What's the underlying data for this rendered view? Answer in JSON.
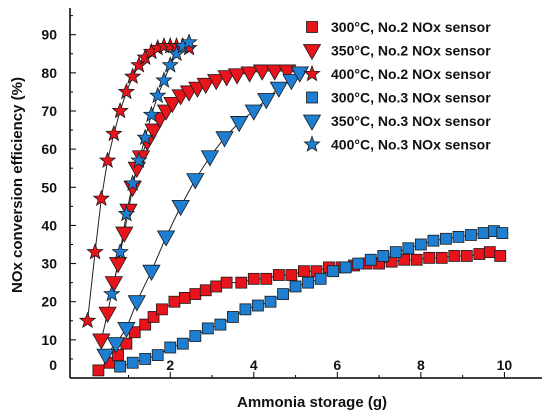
{
  "chart_data": {
    "type": "scatter",
    "xlabel": "Ammonia storage (g)",
    "ylabel": "NOx conversion efficiency (%)",
    "xlim": [
      -0.4,
      10.9
    ],
    "ylim": [
      0,
      97
    ],
    "xticks": [
      2,
      4,
      6,
      8,
      10
    ],
    "yticks": [
      10,
      20,
      30,
      40,
      50,
      60,
      70,
      80,
      90
    ],
    "y_zero_label": "0",
    "grid": false,
    "legend_position": "top-right",
    "colors": {
      "red": "#e8141c",
      "blue": "#1e7fd2",
      "edge": "#1a1a1a"
    },
    "series": [
      {
        "name": "300°C, No.2 NOx sensor",
        "marker": "square",
        "color": "#e8141c",
        "points": [
          [
            0.28,
            2
          ],
          [
            0.55,
            4
          ],
          [
            0.75,
            6
          ],
          [
            0.95,
            9
          ],
          [
            1.15,
            12
          ],
          [
            1.4,
            14
          ],
          [
            1.6,
            16
          ],
          [
            1.8,
            18
          ],
          [
            2.1,
            20
          ],
          [
            2.35,
            21
          ],
          [
            2.6,
            22
          ],
          [
            2.85,
            23
          ],
          [
            3.1,
            24
          ],
          [
            3.35,
            25
          ],
          [
            3.7,
            25
          ],
          [
            4.0,
            26
          ],
          [
            4.3,
            26
          ],
          [
            4.6,
            27
          ],
          [
            4.9,
            27
          ],
          [
            5.2,
            28
          ],
          [
            5.5,
            28
          ],
          [
            5.8,
            29
          ],
          [
            6.1,
            29
          ],
          [
            6.4,
            29.5
          ],
          [
            6.7,
            30
          ],
          [
            7.0,
            30
          ],
          [
            7.3,
            30.5
          ],
          [
            7.6,
            31
          ],
          [
            7.9,
            31
          ],
          [
            8.2,
            31.5
          ],
          [
            8.5,
            31.5
          ],
          [
            8.8,
            32
          ],
          [
            9.1,
            32
          ],
          [
            9.4,
            32.5
          ],
          [
            9.65,
            33
          ],
          [
            9.9,
            32
          ]
        ]
      },
      {
        "name": "350°C, No.2 NOx sensor",
        "marker": "triangle-down",
        "color": "#e8141c",
        "points": [
          [
            0.35,
            10
          ],
          [
            0.5,
            17
          ],
          [
            0.65,
            25
          ],
          [
            0.75,
            30
          ],
          [
            0.9,
            38
          ],
          [
            1.0,
            44
          ],
          [
            1.1,
            50
          ],
          [
            1.2,
            55
          ],
          [
            1.3,
            58
          ],
          [
            1.45,
            62
          ],
          [
            1.6,
            65
          ],
          [
            1.75,
            68
          ],
          [
            1.9,
            70
          ],
          [
            2.05,
            72
          ],
          [
            2.25,
            74
          ],
          [
            2.45,
            75
          ],
          [
            2.65,
            76
          ],
          [
            2.85,
            77
          ],
          [
            3.1,
            78
          ],
          [
            3.35,
            79
          ],
          [
            3.6,
            79.5
          ],
          [
            3.9,
            80
          ],
          [
            4.2,
            80.5
          ],
          [
            4.5,
            80.5
          ],
          [
            4.8,
            80.5
          ],
          [
            5.1,
            80
          ]
        ]
      },
      {
        "name": "400°C, No.2 NOx sensor",
        "marker": "star",
        "color": "#e8141c",
        "points": [
          [
            0.02,
            15
          ],
          [
            0.2,
            33
          ],
          [
            0.35,
            47
          ],
          [
            0.5,
            57
          ],
          [
            0.65,
            64
          ],
          [
            0.8,
            70
          ],
          [
            0.95,
            75
          ],
          [
            1.1,
            79
          ],
          [
            1.25,
            82
          ],
          [
            1.4,
            84
          ],
          [
            1.55,
            85.5
          ],
          [
            1.7,
            86.5
          ],
          [
            1.85,
            87
          ],
          [
            2.0,
            87
          ],
          [
            2.15,
            87
          ],
          [
            2.3,
            87
          ],
          [
            2.45,
            86.5
          ]
        ]
      },
      {
        "name": "300°C, No.3 NOx sensor",
        "marker": "square",
        "color": "#1e7fd2",
        "points": [
          [
            0.8,
            3
          ],
          [
            1.1,
            4
          ],
          [
            1.4,
            5
          ],
          [
            1.7,
            6
          ],
          [
            2.0,
            8
          ],
          [
            2.3,
            9
          ],
          [
            2.6,
            11
          ],
          [
            2.9,
            13
          ],
          [
            3.2,
            14
          ],
          [
            3.5,
            16
          ],
          [
            3.8,
            18
          ],
          [
            4.1,
            19
          ],
          [
            4.4,
            20
          ],
          [
            4.7,
            22
          ],
          [
            5.0,
            24
          ],
          [
            5.3,
            25
          ],
          [
            5.6,
            26
          ],
          [
            5.9,
            28
          ],
          [
            6.2,
            29
          ],
          [
            6.5,
            30
          ],
          [
            6.8,
            31
          ],
          [
            7.1,
            32
          ],
          [
            7.4,
            33
          ],
          [
            7.7,
            34
          ],
          [
            8.0,
            35
          ],
          [
            8.3,
            36
          ],
          [
            8.6,
            36.5
          ],
          [
            8.9,
            37
          ],
          [
            9.2,
            37.5
          ],
          [
            9.5,
            38
          ],
          [
            9.75,
            38.5
          ],
          [
            9.95,
            38
          ]
        ]
      },
      {
        "name": "350°C, No.3 NOx sensor",
        "marker": "triangle-down",
        "color": "#1e7fd2",
        "points": [
          [
            0.45,
            6
          ],
          [
            0.7,
            9
          ],
          [
            0.95,
            13
          ],
          [
            1.2,
            20
          ],
          [
            1.55,
            28
          ],
          [
            1.9,
            37
          ],
          [
            2.25,
            45
          ],
          [
            2.6,
            52
          ],
          [
            2.95,
            58
          ],
          [
            3.3,
            63
          ],
          [
            3.65,
            67
          ],
          [
            4.0,
            70
          ],
          [
            4.3,
            73
          ],
          [
            4.6,
            76
          ],
          [
            4.9,
            78
          ],
          [
            5.1,
            80
          ]
        ]
      },
      {
        "name": "400°C, No.3 NOx sensor",
        "marker": "star",
        "color": "#1e7fd2",
        "points": [
          [
            0.6,
            22
          ],
          [
            0.8,
            33
          ],
          [
            0.95,
            43
          ],
          [
            1.1,
            51
          ],
          [
            1.25,
            57
          ],
          [
            1.4,
            63
          ],
          [
            1.55,
            69
          ],
          [
            1.7,
            74
          ],
          [
            1.85,
            78
          ],
          [
            2.0,
            82
          ],
          [
            2.15,
            85
          ],
          [
            2.3,
            87
          ],
          [
            2.45,
            88
          ]
        ]
      }
    ]
  }
}
